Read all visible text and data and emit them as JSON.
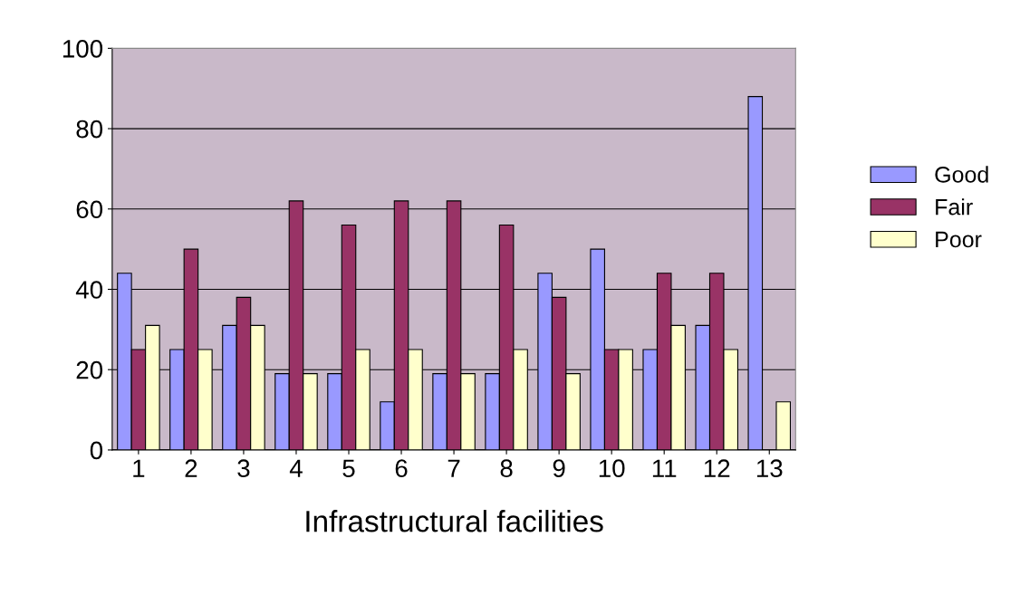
{
  "chart_data": {
    "type": "bar",
    "xlabel": "Infrastructural facilities",
    "categories": [
      "1",
      "2",
      "3",
      "4",
      "5",
      "6",
      "7",
      "8",
      "9",
      "10",
      "11",
      "12",
      "13"
    ],
    "series": [
      {
        "name": "Good",
        "color": "#9999ff",
        "values": [
          44,
          25,
          31,
          19,
          19,
          12,
          19,
          19,
          44,
          50,
          25,
          31,
          88
        ]
      },
      {
        "name": "Fair",
        "color": "#993366",
        "values": [
          25,
          50,
          38,
          62,
          56,
          62,
          62,
          56,
          38,
          25,
          44,
          44,
          null
        ]
      },
      {
        "name": "Poor",
        "color": "#ffffcc",
        "values": [
          31,
          25,
          31,
          19,
          25,
          25,
          19,
          25,
          19,
          25,
          31,
          25,
          12
        ]
      }
    ],
    "ylim": [
      0,
      100
    ],
    "yticks": [
      0,
      20,
      40,
      60,
      80,
      100
    ],
    "grid": "y",
    "legend": "right"
  }
}
